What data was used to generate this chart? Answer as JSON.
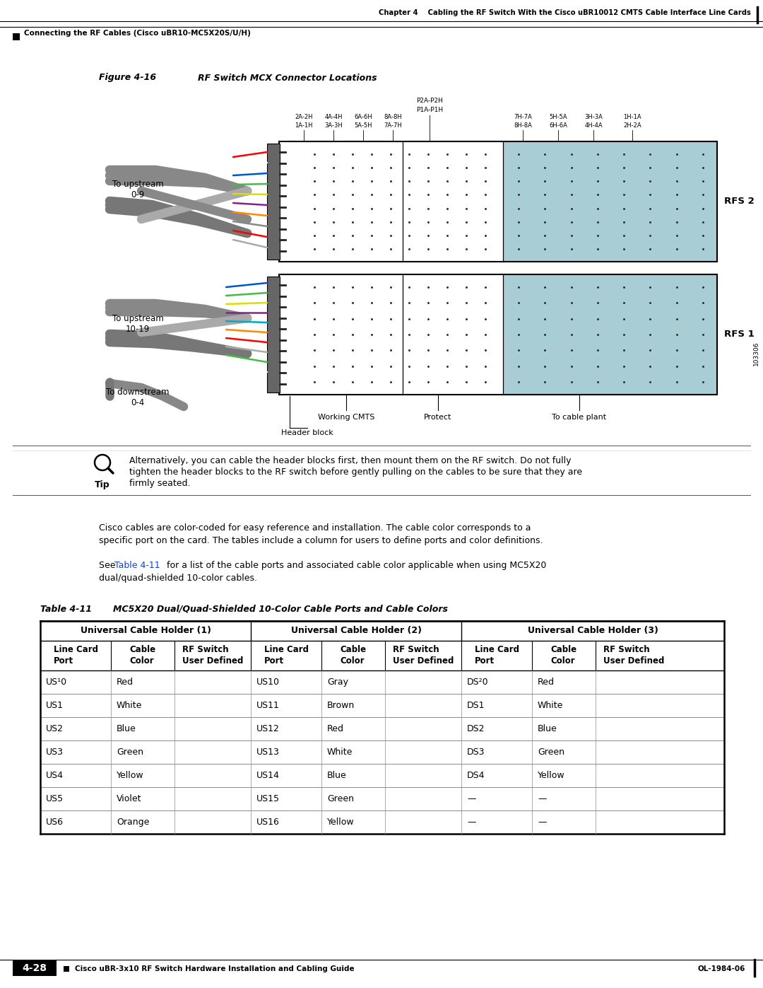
{
  "page_bg": "#ffffff",
  "header_text": "Chapter 4    Cabling the RF Switch With the Cisco uBR10012 CMTS Cable Interface Line Cards",
  "subheader_text": "Connecting the RF Cables (Cisco uBR10-MC5X20S/U/H)",
  "figure_title": "Figure 4-16",
  "figure_subtitle": "RF Switch MCX Connector Locations",
  "figure_num": "103306",
  "tip_text": "Alternatively, you can cable the header blocks first, then mount them on the RF switch. Do not fully\ntighten the header blocks to the RF switch before gently pulling on the cables to be sure that they are\nfirmly seated.",
  "body_text1a": "Cisco cables are color-coded for easy reference and installation. The cable color corresponds to a",
  "body_text1b": "specific port on the card. The tables include a column for users to define ports and color definitions.",
  "body_text2a": "See ",
  "body_text2b": "Table 4-11",
  "body_text2c": " for a list of the cable ports and associated cable color applicable when using MC5X20",
  "body_text2d": "dual/quad-shielded 10-color cables.",
  "table_title": "Table 4-11",
  "table_subtitle": "MC5X20 Dual/Quad-Shielded 10-Color Cable Ports and Cable Colors",
  "footer_text": "Cisco uBR-3x10 RF Switch Hardware Installation and Cabling Guide",
  "page_num": "4-28",
  "doc_num": "OL-1984-06",
  "section_headers": [
    "Universal Cable Holder (1)",
    "Universal Cable Holder (2)",
    "Universal Cable Holder (3)"
  ],
  "table_data": [
    [
      "US¹0",
      "Red",
      "",
      "US10",
      "Gray",
      "",
      "DS²0",
      "Red",
      ""
    ],
    [
      "US1",
      "White",
      "",
      "US11",
      "Brown",
      "",
      "DS1",
      "White",
      ""
    ],
    [
      "US2",
      "Blue",
      "",
      "US12",
      "Red",
      "",
      "DS2",
      "Blue",
      ""
    ],
    [
      "US3",
      "Green",
      "",
      "US13",
      "White",
      "",
      "DS3",
      "Green",
      ""
    ],
    [
      "US4",
      "Yellow",
      "",
      "US14",
      "Blue",
      "",
      "DS4",
      "Yellow",
      ""
    ],
    [
      "US5",
      "Violet",
      "",
      "US15",
      "Green",
      "",
      "—",
      "—",
      ""
    ],
    [
      "US6",
      "Orange",
      "",
      "US16",
      "Yellow",
      "",
      "—",
      "—",
      ""
    ]
  ],
  "rfs2_label": "RFS 2",
  "rfs1_label": "RFS 1",
  "blue_color": "#a8cdd4",
  "dot_color": "#333333",
  "wire_colors_rfs2": [
    "#ff0000",
    "#cc8800",
    "#8800cc",
    "#0066ff",
    "#00aaaa",
    "#888888",
    "#ff8800",
    "#ff0000",
    "#888888",
    "#aaaaaa"
  ],
  "wire_colors_rfs1": [
    "#0066ff",
    "#00cc00",
    "#ffcc00",
    "#cc44cc",
    "#00aaff",
    "#ff8800",
    "#ff0000",
    "#888888",
    "#00cc00",
    "#aaaaaa"
  ]
}
